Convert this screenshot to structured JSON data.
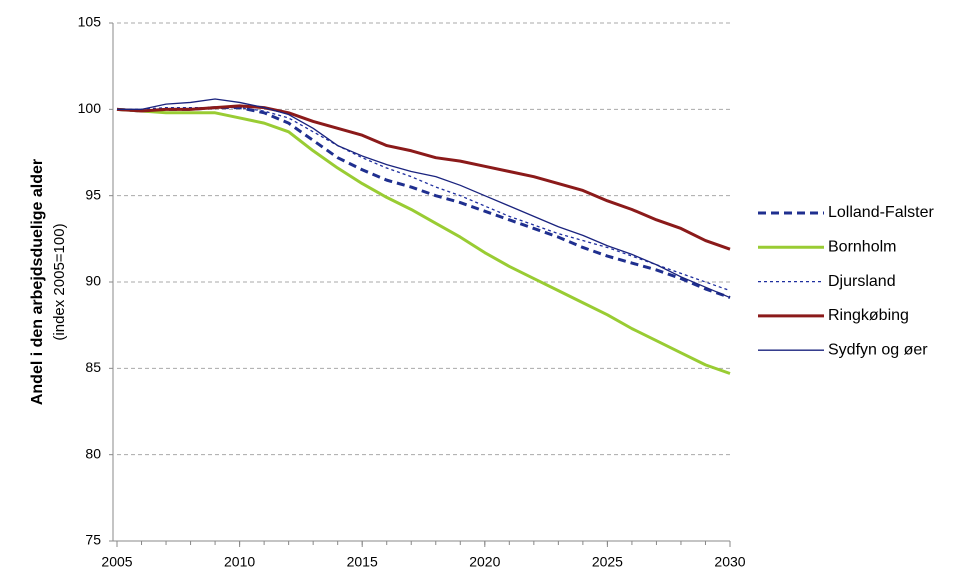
{
  "chart_data": {
    "type": "line",
    "y_title": "Andel i den arbejdsduelige alder",
    "y_subtitle": "(index 2005=100)",
    "x": [
      2005,
      2006,
      2007,
      2008,
      2009,
      2010,
      2011,
      2012,
      2013,
      2014,
      2015,
      2016,
      2017,
      2018,
      2019,
      2020,
      2021,
      2022,
      2023,
      2024,
      2025,
      2026,
      2027,
      2028,
      2029,
      2030
    ],
    "xlim": [
      2005,
      2030
    ],
    "xticks": [
      2005,
      2010,
      2015,
      2020,
      2025,
      2030
    ],
    "ylim": [
      75,
      105
    ],
    "yticks": [
      75,
      80,
      85,
      90,
      95,
      100,
      105
    ],
    "grid": true,
    "legend": "right",
    "series": [
      {
        "name": "Lolland-Falster",
        "color": "#1f2f8f",
        "line_style": "dashed",
        "line_width": "thick",
        "values": [
          100,
          99.9,
          100,
          100,
          100.1,
          100.1,
          99.8,
          99.2,
          98.2,
          97.2,
          96.5,
          95.9,
          95.5,
          95.0,
          94.6,
          94.1,
          93.6,
          93.1,
          92.6,
          92.0,
          91.5,
          91.1,
          90.7,
          90.2,
          89.6,
          89.1
        ]
      },
      {
        "name": "Bornholm",
        "color": "#99cc33",
        "line_style": "solid",
        "line_width": "thick",
        "values": [
          100,
          99.9,
          99.8,
          99.8,
          99.8,
          99.5,
          99.2,
          98.7,
          97.6,
          96.6,
          95.7,
          94.9,
          94.2,
          93.4,
          92.6,
          91.7,
          90.9,
          90.2,
          89.5,
          88.8,
          88.1,
          87.3,
          86.6,
          85.9,
          85.2,
          84.7
        ]
      },
      {
        "name": "Djursland",
        "color": "#1f2f9f",
        "line_style": "dotted",
        "line_width": "thin",
        "values": [
          100,
          100,
          100.1,
          100.1,
          100.1,
          100.1,
          99.9,
          99.5,
          98.7,
          97.9,
          97.2,
          96.6,
          96.1,
          95.5,
          95.0,
          94.4,
          93.8,
          93.3,
          92.8,
          92.4,
          92.0,
          91.5,
          91.0,
          90.5,
          90.0,
          89.5
        ]
      },
      {
        "name": "Ringkøbing",
        "color": "#8b1a1a",
        "line_style": "solid",
        "line_width": "thick",
        "values": [
          100,
          99.9,
          100,
          100,
          100.1,
          100.2,
          100.1,
          99.8,
          99.3,
          98.9,
          98.5,
          97.9,
          97.6,
          97.2,
          97.0,
          96.7,
          96.4,
          96.1,
          95.7,
          95.3,
          94.7,
          94.2,
          93.6,
          93.1,
          92.4,
          91.9
        ]
      },
      {
        "name": "Sydfyn og øer",
        "color": "#1a237e",
        "line_style": "solid",
        "line_width": "thin",
        "values": [
          100,
          100,
          100.3,
          100.4,
          100.6,
          100.4,
          100.1,
          99.7,
          98.9,
          97.9,
          97.3,
          96.8,
          96.4,
          96.1,
          95.6,
          95.0,
          94.4,
          93.8,
          93.2,
          92.7,
          92.1,
          91.6,
          91.0,
          90.3,
          89.7,
          89.1
        ]
      }
    ]
  }
}
